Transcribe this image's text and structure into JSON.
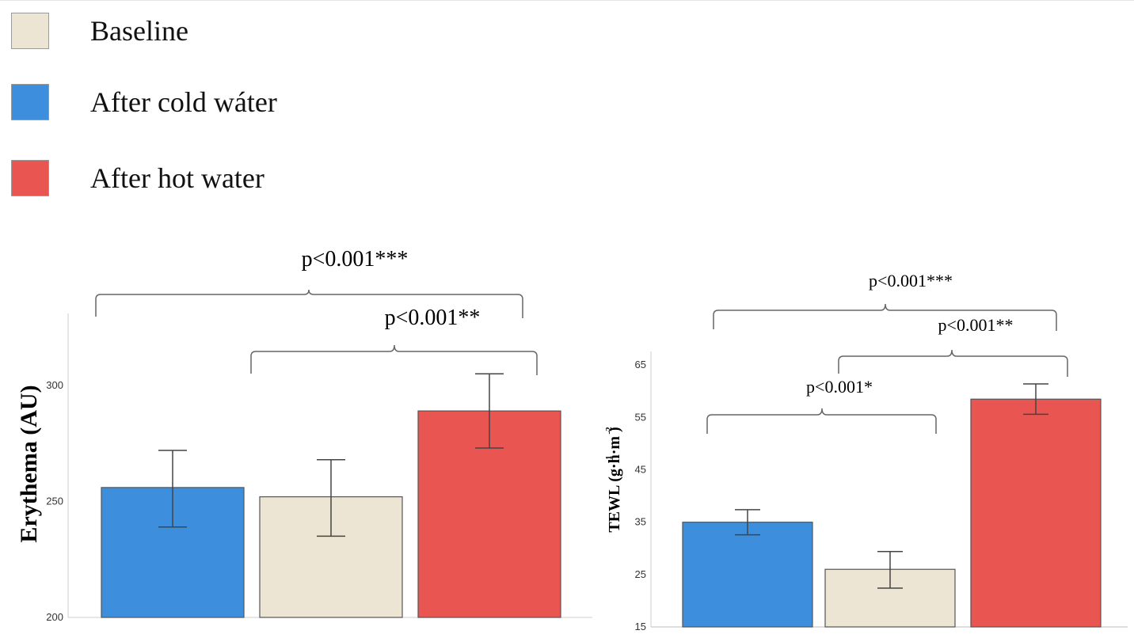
{
  "legend": {
    "items": [
      {
        "label": "Baseline",
        "color": "#EDE5D3"
      },
      {
        "label": "After cold wáter",
        "color": "#3D8FDD"
      },
      {
        "label": "After hot water",
        "color": "#E95652"
      }
    ]
  },
  "chart_data": [
    {
      "type": "bar",
      "categories": [
        "After cold wáter",
        "Baseline",
        "After hot water"
      ],
      "values": [
        256,
        252,
        289
      ],
      "errors": [
        [
          239,
          272
        ],
        [
          235,
          268
        ],
        [
          273,
          305
        ]
      ],
      "colors": [
        "#3D8FDD",
        "#EDE5D3",
        "#E95652"
      ],
      "ylabel": "Erythema (AU)",
      "ylim": [
        200,
        330
      ],
      "yticks": [
        "200",
        "250",
        "300"
      ],
      "annotations": [
        "p<0.001***",
        "p<0.001**"
      ]
    },
    {
      "type": "bar",
      "categories": [
        "After cold wáter",
        "Baseline",
        "After hot water"
      ],
      "values": [
        35,
        26,
        58.5
      ],
      "errors": [
        [
          32.6,
          37.4
        ],
        [
          22.4,
          29.4
        ],
        [
          55.6,
          61.4
        ]
      ],
      "colors": [
        "#3D8FDD",
        "#EDE5D3",
        "#E95652"
      ],
      "ylabel": "TEWL (g·h·m )",
      "ylabel_superscripts": [
        "-1",
        "-2"
      ],
      "ylim": [
        15,
        67
      ],
      "yticks": [
        "15",
        "25",
        "35",
        "45",
        "55",
        "65"
      ],
      "annotations": [
        "p<0.001***",
        "p<0.001**",
        "p<0.001*"
      ]
    }
  ]
}
